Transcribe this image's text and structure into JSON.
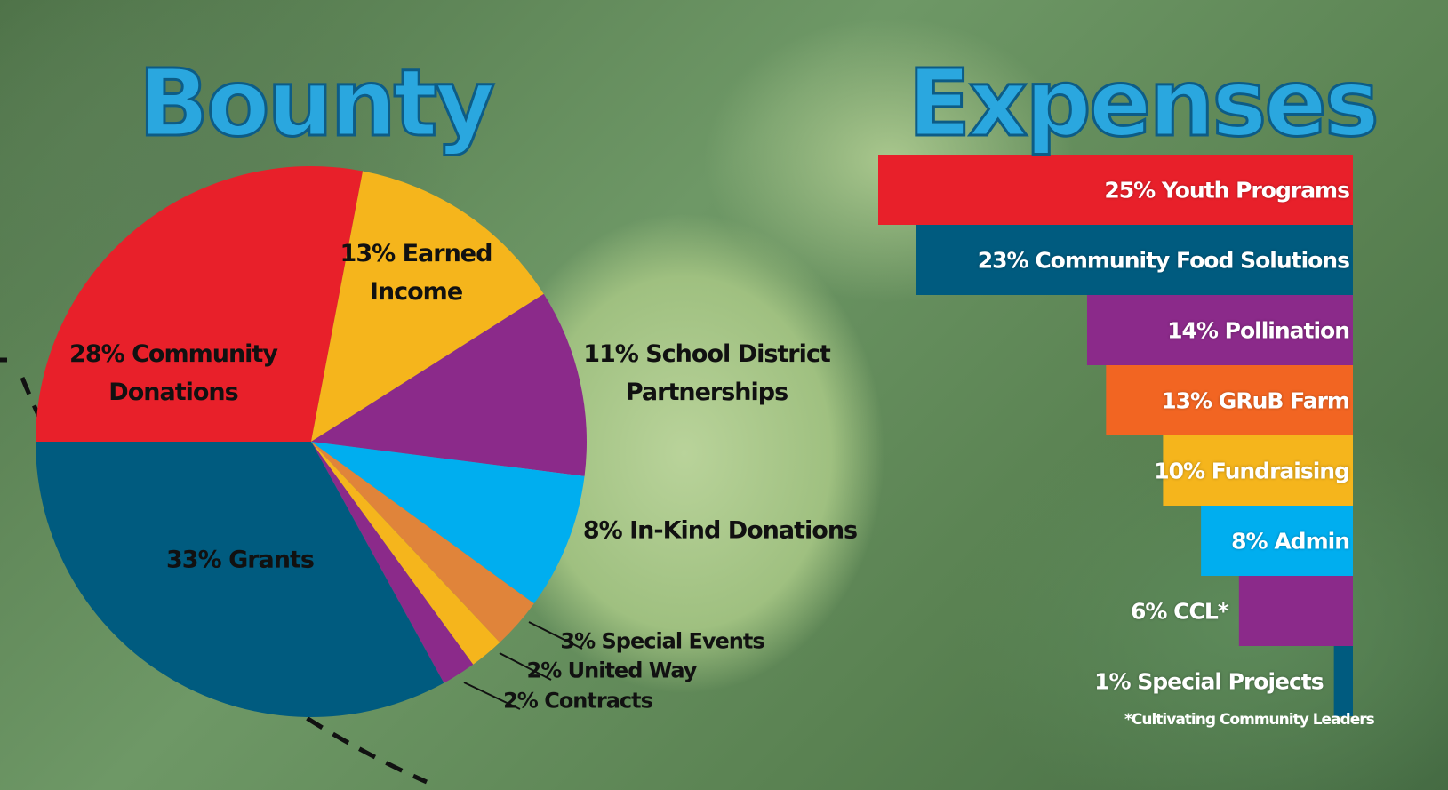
{
  "chart_data": [
    {
      "type": "pie",
      "title": "Bounty",
      "categories": [
        "Community Donations",
        "Earned Income",
        "School District Partnerships",
        "In-Kind Donations",
        "Special Events",
        "United Way",
        "Contracts",
        "Grants"
      ],
      "values": [
        28,
        13,
        11,
        8,
        3,
        2,
        2,
        33
      ],
      "value_labels": [
        "28%",
        "13%",
        "11%",
        "8%",
        "3%",
        "2%",
        "2%",
        "33%"
      ],
      "colors": [
        "#e8202a",
        "#f5b51c",
        "#8b2a8a",
        "#00aeef",
        "#e0843a",
        "#f5b51c",
        "#8b2a8a",
        "#005b7f"
      ]
    },
    {
      "type": "bar",
      "title": "Expenses",
      "categories": [
        "Youth Programs",
        "Community Food Solutions",
        "Pollination",
        "GRuB Farm",
        "Fundraising",
        "Admin",
        "CCL*",
        "Special Projects"
      ],
      "values": [
        25,
        23,
        14,
        13,
        10,
        8,
        6,
        1
      ],
      "value_labels": [
        "25%",
        "23%",
        "14%",
        "13%",
        "10%",
        "8%",
        "6%",
        "1%"
      ],
      "colors": [
        "#e8202a",
        "#005b7f",
        "#8b2a8a",
        "#f26522",
        "#f5b51c",
        "#00aeef",
        "#8b2a8a",
        "#005b7f"
      ],
      "note": "*Cultivating Community Leaders"
    }
  ]
}
